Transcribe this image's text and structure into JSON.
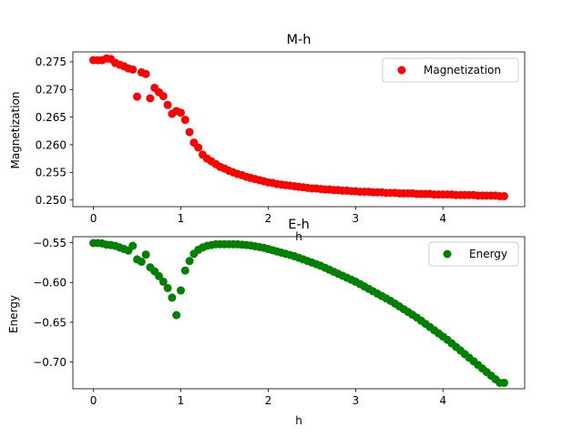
{
  "chart_data": [
    {
      "type": "scatter",
      "title": "M-h",
      "xlabel": "h",
      "ylabel": "Magnetization",
      "xlim": [
        -0.235,
        4.935
      ],
      "ylim": [
        0.2488,
        0.2768
      ],
      "xticks": [
        0,
        1,
        2,
        3,
        4
      ],
      "yticks": [
        0.25,
        0.255,
        0.26,
        0.265,
        0.27,
        0.275
      ],
      "ytick_labels": [
        "0.250",
        "0.255",
        "0.260",
        "0.265",
        "0.270",
        "0.275"
      ],
      "legend_position": "upper-right",
      "grid": false,
      "series": [
        {
          "name": "Magnetization",
          "color": "#ff0000",
          "x": [
            0.0,
            0.05,
            0.1,
            0.15,
            0.2,
            0.25,
            0.3,
            0.35,
            0.4,
            0.45,
            0.5,
            0.55,
            0.6,
            0.65,
            0.7,
            0.75,
            0.8,
            0.85,
            0.9,
            0.95,
            1.0,
            1.05,
            1.1,
            1.15,
            1.2,
            1.25,
            1.3,
            1.35,
            1.4,
            1.45,
            1.5,
            1.55,
            1.6,
            1.65,
            1.7,
            1.75,
            1.8,
            1.85,
            1.9,
            1.95,
            2.0,
            2.05,
            2.1,
            2.15,
            2.2,
            2.25,
            2.3,
            2.35,
            2.4,
            2.45,
            2.5,
            2.55,
            2.6,
            2.65,
            2.7,
            2.75,
            2.8,
            2.85,
            2.9,
            2.95,
            3.0,
            3.05,
            3.1,
            3.15,
            3.2,
            3.25,
            3.3,
            3.35,
            3.4,
            3.45,
            3.5,
            3.55,
            3.6,
            3.65,
            3.7,
            3.75,
            3.8,
            3.85,
            3.9,
            3.95,
            4.0,
            4.05,
            4.1,
            4.15,
            4.2,
            4.25,
            4.3,
            4.35,
            4.4,
            4.45,
            4.5,
            4.55,
            4.6,
            4.65,
            4.7
          ],
          "y": [
            0.2753,
            0.2753,
            0.2753,
            0.2756,
            0.2755,
            0.2748,
            0.2745,
            0.2742,
            0.2738,
            0.2736,
            0.2687,
            0.2731,
            0.2728,
            0.2684,
            0.2703,
            0.2695,
            0.2688,
            0.2672,
            0.2656,
            0.2661,
            0.2658,
            0.2645,
            0.2623,
            0.2604,
            0.2595,
            0.2582,
            0.2575,
            0.257,
            0.2565,
            0.256,
            0.2557,
            0.2553,
            0.255,
            0.2547,
            0.2545,
            0.2542,
            0.254,
            0.2538,
            0.2536,
            0.2534,
            0.2532,
            0.2531,
            0.2529,
            0.2528,
            0.2527,
            0.2526,
            0.2525,
            0.2524,
            0.2523,
            0.2522,
            0.2521,
            0.2521,
            0.252,
            0.2519,
            0.2519,
            0.2518,
            0.2518,
            0.2517,
            0.2517,
            0.2516,
            0.2516,
            0.2515,
            0.2515,
            0.2515,
            0.2514,
            0.2514,
            0.2514,
            0.2513,
            0.2513,
            0.2513,
            0.2512,
            0.2512,
            0.2512,
            0.2512,
            0.2511,
            0.2511,
            0.2511,
            0.2511,
            0.251,
            0.251,
            0.251,
            0.251,
            0.251,
            0.2509,
            0.2509,
            0.2509,
            0.2509,
            0.2509,
            0.2508,
            0.2508,
            0.2508,
            0.2508,
            0.2508,
            0.2507,
            0.2507
          ]
        }
      ]
    },
    {
      "type": "scatter",
      "title": "E-h",
      "xlabel": "h",
      "ylabel": "Energy",
      "xlim": [
        -0.235,
        4.935
      ],
      "ylim": [
        -0.7335,
        -0.5425
      ],
      "xticks": [
        0,
        1,
        2,
        3,
        4
      ],
      "yticks": [
        -0.7,
        -0.65,
        -0.6,
        -0.55
      ],
      "ytick_labels": [
        "−0.70",
        "−0.65",
        "−0.60",
        "−0.55"
      ],
      "legend_position": "upper-right",
      "grid": false,
      "series": [
        {
          "name": "Energy",
          "color": "#008000",
          "x": [
            0.0,
            0.05,
            0.1,
            0.15,
            0.2,
            0.25,
            0.3,
            0.35,
            0.4,
            0.45,
            0.5,
            0.55,
            0.6,
            0.65,
            0.7,
            0.75,
            0.8,
            0.85,
            0.9,
            0.95,
            1.0,
            1.05,
            1.1,
            1.15,
            1.2,
            1.25,
            1.3,
            1.35,
            1.4,
            1.45,
            1.5,
            1.55,
            1.6,
            1.65,
            1.7,
            1.75,
            1.8,
            1.85,
            1.9,
            1.95,
            2.0,
            2.05,
            2.1,
            2.15,
            2.2,
            2.25,
            2.3,
            2.35,
            2.4,
            2.45,
            2.5,
            2.55,
            2.6,
            2.65,
            2.7,
            2.75,
            2.8,
            2.85,
            2.9,
            2.95,
            3.0,
            3.05,
            3.1,
            3.15,
            3.2,
            3.25,
            3.3,
            3.35,
            3.4,
            3.45,
            3.5,
            3.55,
            3.6,
            3.65,
            3.7,
            3.75,
            3.8,
            3.85,
            3.9,
            3.95,
            4.0,
            4.05,
            4.1,
            4.15,
            4.2,
            4.25,
            4.3,
            4.35,
            4.4,
            4.45,
            4.5,
            4.55,
            4.6,
            4.65,
            4.7
          ],
          "y": [
            -0.5505,
            -0.5505,
            -0.551,
            -0.5525,
            -0.553,
            -0.554,
            -0.556,
            -0.558,
            -0.56,
            -0.554,
            -0.571,
            -0.574,
            -0.565,
            -0.581,
            -0.586,
            -0.592,
            -0.599,
            -0.607,
            -0.619,
            -0.641,
            -0.61,
            -0.585,
            -0.573,
            -0.564,
            -0.559,
            -0.556,
            -0.554,
            -0.553,
            -0.552,
            -0.552,
            -0.552,
            -0.552,
            -0.552,
            -0.552,
            -0.5525,
            -0.553,
            -0.5535,
            -0.5545,
            -0.5555,
            -0.5565,
            -0.558,
            -0.5595,
            -0.561,
            -0.5625,
            -0.564,
            -0.5655,
            -0.567,
            -0.569,
            -0.571,
            -0.573,
            -0.575,
            -0.577,
            -0.579,
            -0.5815,
            -0.584,
            -0.5865,
            -0.589,
            -0.5915,
            -0.594,
            -0.5965,
            -0.599,
            -0.602,
            -0.605,
            -0.608,
            -0.611,
            -0.614,
            -0.617,
            -0.62,
            -0.623,
            -0.6265,
            -0.63,
            -0.6335,
            -0.637,
            -0.6405,
            -0.644,
            -0.648,
            -0.652,
            -0.656,
            -0.66,
            -0.664,
            -0.668,
            -0.672,
            -0.6765,
            -0.681,
            -0.6855,
            -0.69,
            -0.6945,
            -0.699,
            -0.7035,
            -0.708,
            -0.7125,
            -0.717,
            -0.7215,
            -0.726,
            -0.726
          ]
        }
      ]
    }
  ]
}
